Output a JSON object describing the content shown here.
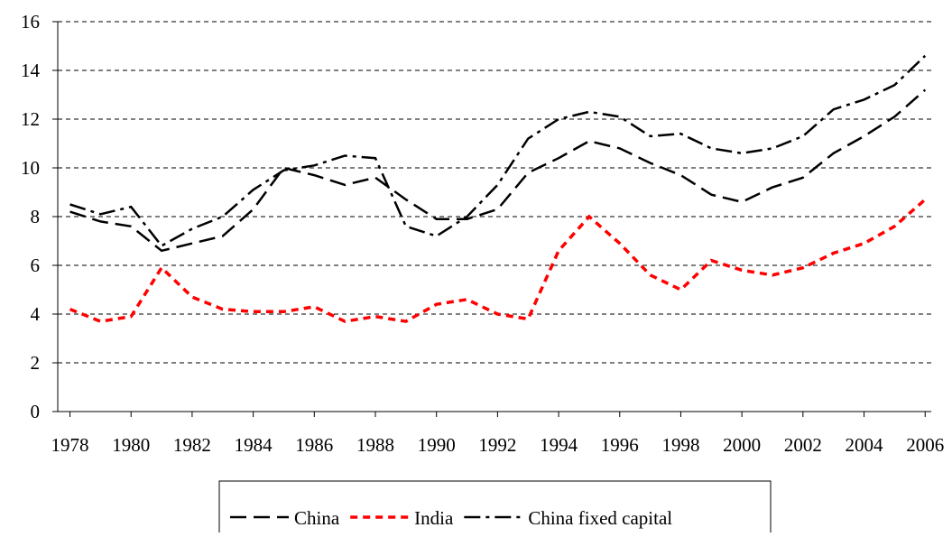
{
  "chart_data": {
    "type": "line",
    "x": [
      1978,
      1979,
      1980,
      1981,
      1982,
      1983,
      1984,
      1985,
      1986,
      1987,
      1988,
      1989,
      1990,
      1991,
      1992,
      1993,
      1994,
      1995,
      1996,
      1997,
      1998,
      1999,
      2000,
      2001,
      2002,
      2003,
      2004,
      2005,
      2006
    ],
    "xlim": [
      1977.6,
      2006.2
    ],
    "xticks": [
      1978,
      1980,
      1982,
      1984,
      1986,
      1988,
      1990,
      1992,
      1994,
      1996,
      1998,
      2000,
      2002,
      2004,
      2006
    ],
    "ylim": [
      0,
      16
    ],
    "yticks": [
      0,
      2,
      4,
      6,
      8,
      10,
      12,
      14,
      16
    ],
    "grid": true,
    "legend": "bottom",
    "series": [
      {
        "name": "China",
        "color": "#000000",
        "dash": "18,8",
        "values": [
          8.2,
          7.8,
          7.6,
          6.6,
          6.9,
          7.2,
          8.3,
          10.0,
          9.7,
          9.3,
          9.6,
          8.7,
          7.9,
          7.9,
          8.3,
          9.8,
          10.4,
          11.1,
          10.8,
          10.2,
          9.7,
          8.9,
          8.6,
          9.2,
          9.6,
          10.6,
          11.3,
          12.1,
          13.2
        ]
      },
      {
        "name": "India",
        "color": "#ff0000",
        "dash": "8,6",
        "values": [
          4.2,
          3.7,
          3.9,
          5.9,
          4.7,
          4.2,
          4.1,
          4.1,
          4.3,
          3.7,
          3.9,
          3.7,
          4.4,
          4.6,
          4.0,
          3.8,
          6.6,
          8.0,
          6.9,
          5.6,
          5.0,
          6.2,
          5.8,
          5.6,
          5.9,
          6.5,
          6.9,
          7.6,
          8.7
        ]
      },
      {
        "name": "China fixed capital",
        "color": "#000000",
        "dash": "18,6,4,6",
        "values": [
          8.5,
          8.1,
          8.4,
          6.8,
          7.5,
          8.0,
          9.1,
          9.9,
          10.1,
          10.5,
          10.4,
          7.6,
          7.2,
          8.0,
          9.3,
          11.2,
          12.0,
          12.3,
          12.1,
          11.3,
          11.4,
          10.8,
          10.6,
          10.8,
          11.3,
          12.4,
          12.8,
          13.4,
          14.6
        ]
      }
    ]
  }
}
